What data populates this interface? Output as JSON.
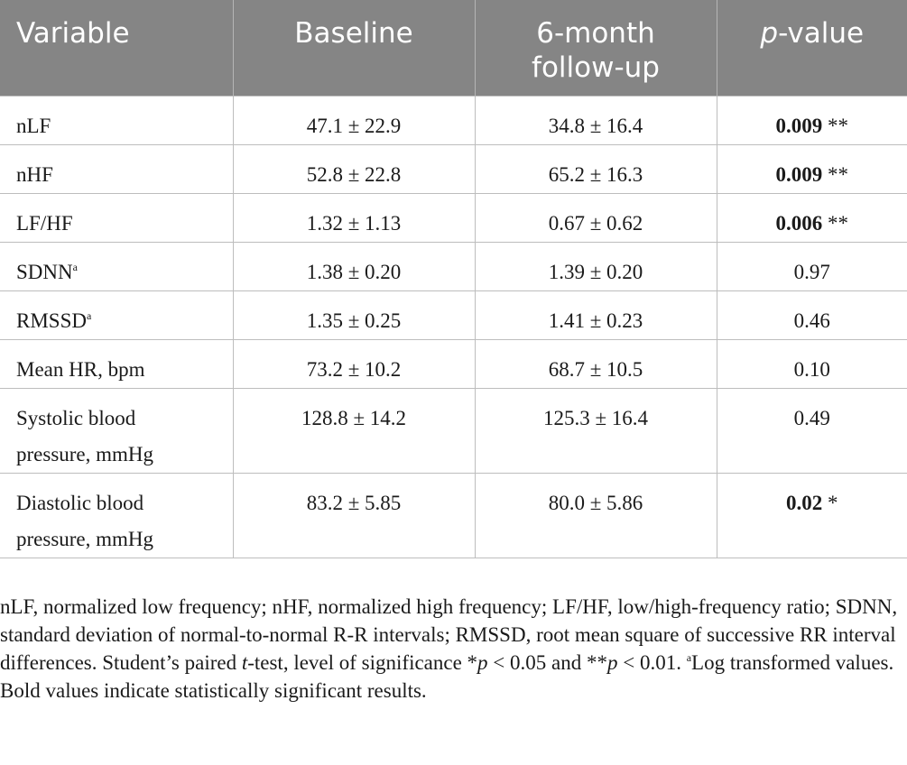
{
  "table": {
    "headers": {
      "variable": "Variable",
      "baseline": "Baseline",
      "followup_line1": "6-month",
      "followup_line2": "follow-up",
      "pvalue_italic": "p",
      "pvalue_rest": "-value"
    },
    "rows": [
      {
        "name": "nLF",
        "sup": "",
        "baseline": "47.1 ± 22.9",
        "followup": "34.8 ± 16.4",
        "p": "0.009",
        "stars": " **",
        "bold": true
      },
      {
        "name": "nHF",
        "sup": "",
        "baseline": "52.8 ± 22.8",
        "followup": "65.2 ± 16.3",
        "p": "0.009",
        "stars": " **",
        "bold": true
      },
      {
        "name": "LF/HF",
        "sup": "",
        "baseline": "1.32 ± 1.13",
        "followup": "0.67 ± 0.62",
        "p": "0.006",
        "stars": " **",
        "bold": true
      },
      {
        "name": "SDNN",
        "sup": "a",
        "baseline": "1.38 ± 0.20",
        "followup": "1.39 ± 0.20",
        "p": "0.97",
        "stars": "",
        "bold": false
      },
      {
        "name": "RMSSD",
        "sup": "a",
        "baseline": "1.35 ± 0.25",
        "followup": "1.41 ± 0.23",
        "p": "0.46",
        "stars": "",
        "bold": false
      },
      {
        "name": "Mean HR, bpm",
        "sup": "",
        "baseline": "73.2 ± 10.2",
        "followup": "68.7 ± 10.5",
        "p": "0.10",
        "stars": "",
        "bold": false
      },
      {
        "name_line1": "Systolic blood",
        "name_line2": "pressure, mmHg",
        "sup": "",
        "baseline": "128.8 ± 14.2",
        "followup": "125.3 ± 16.4",
        "p": "0.49",
        "stars": "",
        "bold": false
      },
      {
        "name_line1": "Diastolic blood",
        "name_line2": "pressure, mmHg",
        "sup": "",
        "baseline": "83.2 ± 5.85",
        "followup": "80.0 ± 5.86",
        "p": "0.02",
        "stars": " *",
        "bold": true
      }
    ]
  },
  "footnote": {
    "part1": "nLF, normalized low frequency; nHF, normalized high frequency; LF/HF, low/high-frequency ratio; SDNN, standard deviation of normal-to-normal R-R intervals; RMSSD, root mean square of successive RR interval differences. Student’s paired ",
    "t": "t",
    "part2": "-test, level of significance *",
    "p1": "p",
    "part3": " < 0.05 and **",
    "p2": "p",
    "part4": " < 0.01. ",
    "sup_a": "a",
    "part5": "Log transformed values. Bold values indicate statistically significant results."
  }
}
